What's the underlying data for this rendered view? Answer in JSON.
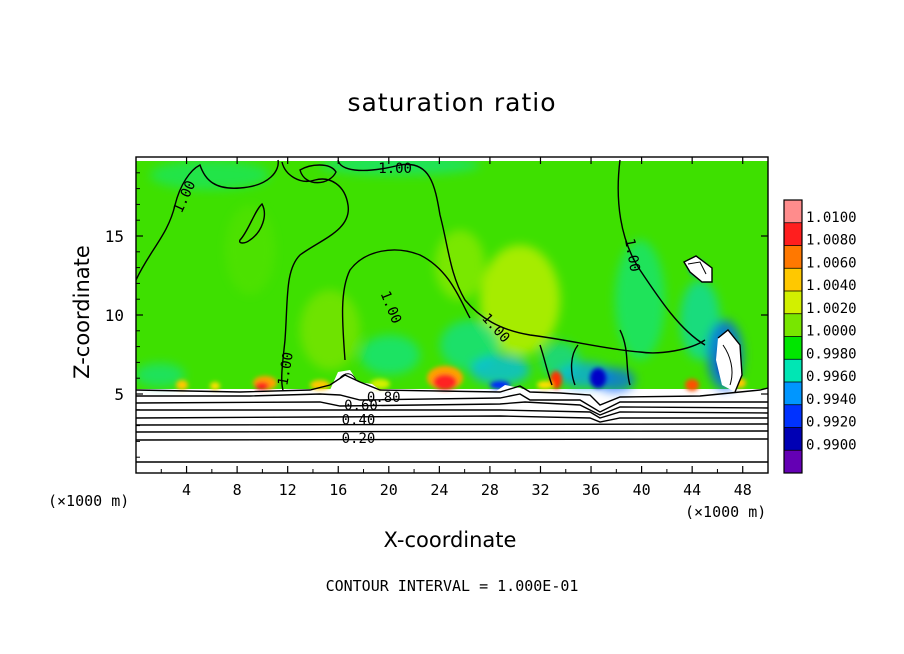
{
  "chart_data": {
    "type": "heatmap",
    "title": "saturation ratio",
    "xlabel": "X-coordinate",
    "ylabel": "Z-coordinate",
    "x_unit": "(×1000 m)",
    "z_unit": "(×1000 m)",
    "xlim": [
      0,
      50
    ],
    "ylim": [
      0,
      20
    ],
    "x_ticks": [
      4,
      8,
      12,
      16,
      20,
      24,
      28,
      32,
      36,
      40,
      44,
      48
    ],
    "y_ticks": [
      5,
      10,
      15
    ],
    "colorbar": {
      "levels": [
        "1.0100",
        "1.0080",
        "1.0060",
        "1.0040",
        "1.0020",
        "1.0000",
        "0.9980",
        "0.9960",
        "0.9940",
        "0.9920",
        "0.9900"
      ],
      "colors": [
        "#ff8c8c",
        "#ff1e1e",
        "#ff7800",
        "#ffc800",
        "#d2f000",
        "#78e600",
        "#00e600",
        "#00e6b4",
        "#0096ff",
        "#0032ff",
        "#0000b4",
        "#6400b4"
      ]
    },
    "contour_labels": [
      {
        "text": "1.00",
        "x": 3.8,
        "z": 17.5,
        "angle": -65
      },
      {
        "text": "1.00",
        "x": 20.2,
        "z": 10.5,
        "angle": 68
      },
      {
        "text": "1.00",
        "x": 28.5,
        "z": 9.2,
        "angle": 48
      },
      {
        "text": "1.00",
        "x": 39.3,
        "z": 13.8,
        "angle": 80
      },
      {
        "text": "1.00",
        "x": 11.8,
        "z": 6.6,
        "angle": -80
      },
      {
        "text": "1.00",
        "x": 20.5,
        "z": 19.3,
        "angle": 0
      },
      {
        "text": "0.80",
        "x": 19.6,
        "z": 4.8,
        "angle": 0
      },
      {
        "text": "0.60",
        "x": 17.8,
        "z": 4.3,
        "angle": 0
      },
      {
        "text": "0.40",
        "x": 17.6,
        "z": 3.4,
        "angle": 0
      },
      {
        "text": "0.20",
        "x": 17.6,
        "z": 2.2,
        "angle": 0
      }
    ],
    "grid": false
  },
  "footer": "CONTOUR INTERVAL = 1.000E-01"
}
